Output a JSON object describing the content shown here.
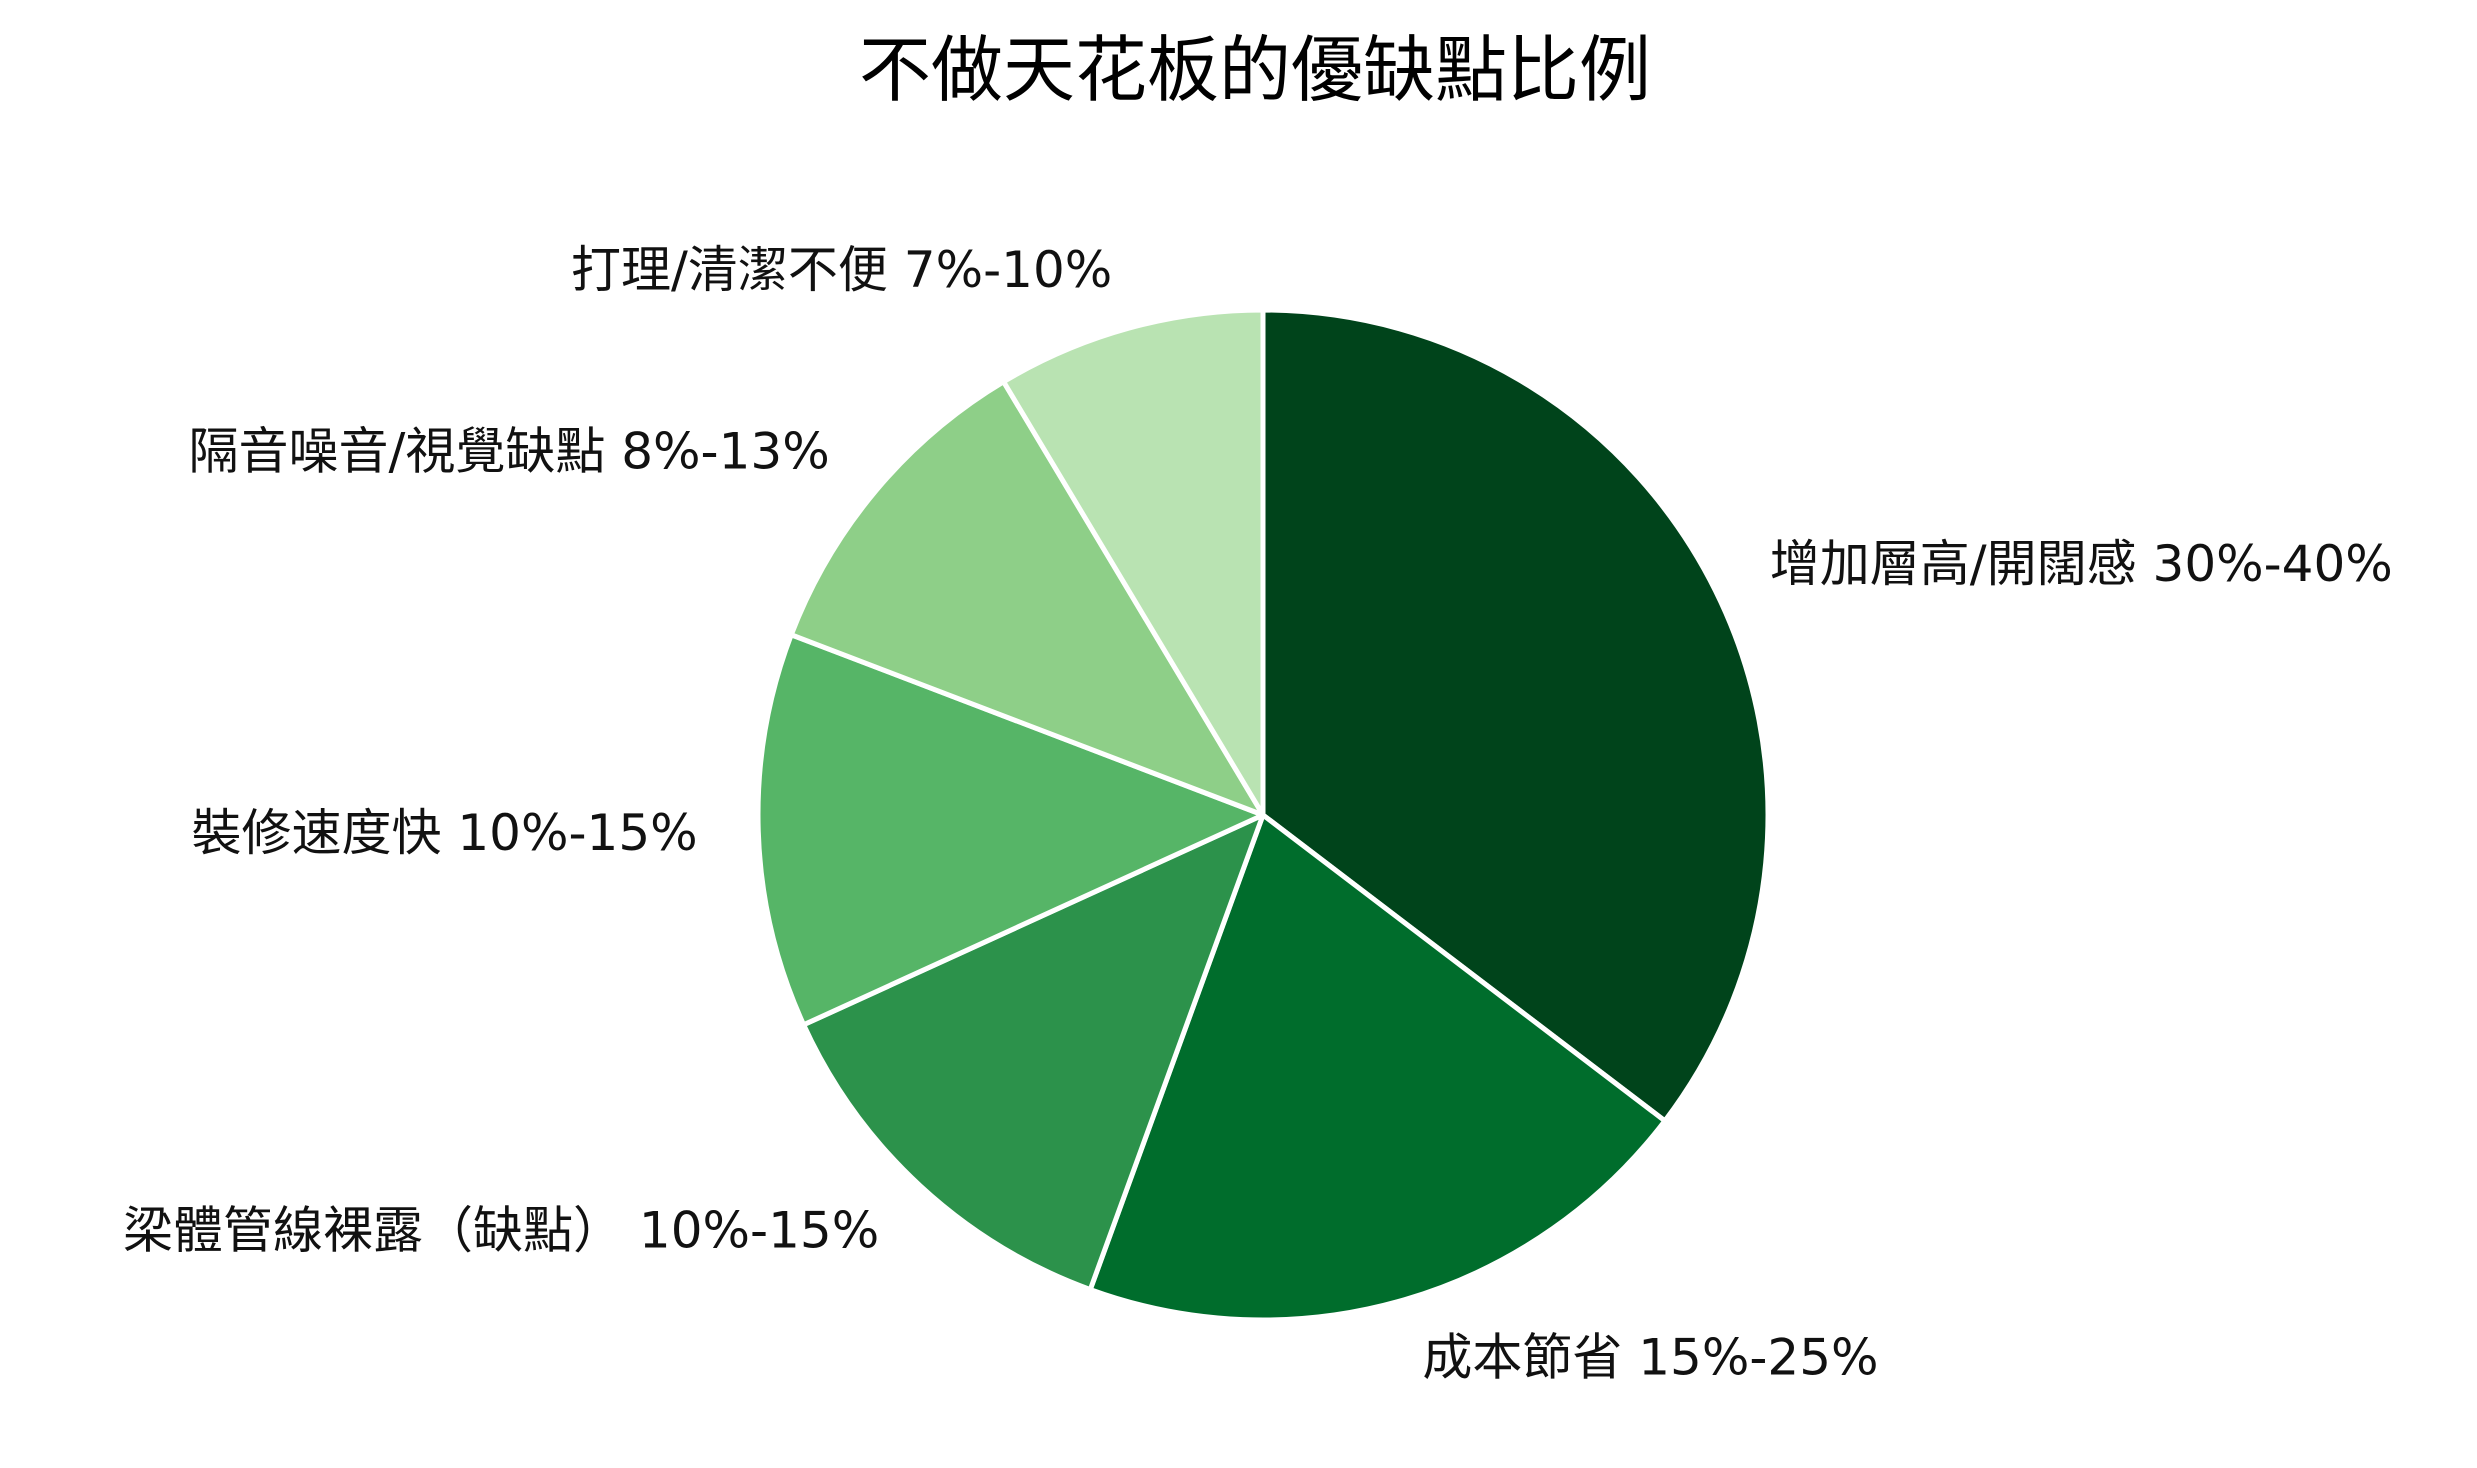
{
  "chart_data": {
    "type": "pie",
    "title": "不做天花板的優缺點比例",
    "start": "top",
    "direction": "clockwise",
    "slices": [
      {
        "label": "增加層高/開闊感 30%-40%",
        "value": 35,
        "color": "#00441b"
      },
      {
        "label": "成本節省 15%-25%",
        "value": 20,
        "color": "#006d2c"
      },
      {
        "label": "梁體管線裸露（缺點） 10%-15%",
        "value": 12.5,
        "color": "#2c924b"
      },
      {
        "label": "裝修速度快 10%-15%",
        "value": 12.5,
        "color": "#56b567"
      },
      {
        "label": "隔音噪音/視覺缺點 8%-13%",
        "value": 10.5,
        "color": "#8ecf88"
      },
      {
        "label": "打理/清潔不便 7%-10%",
        "value": 8.5,
        "color": "#b9e3b2"
      }
    ]
  }
}
